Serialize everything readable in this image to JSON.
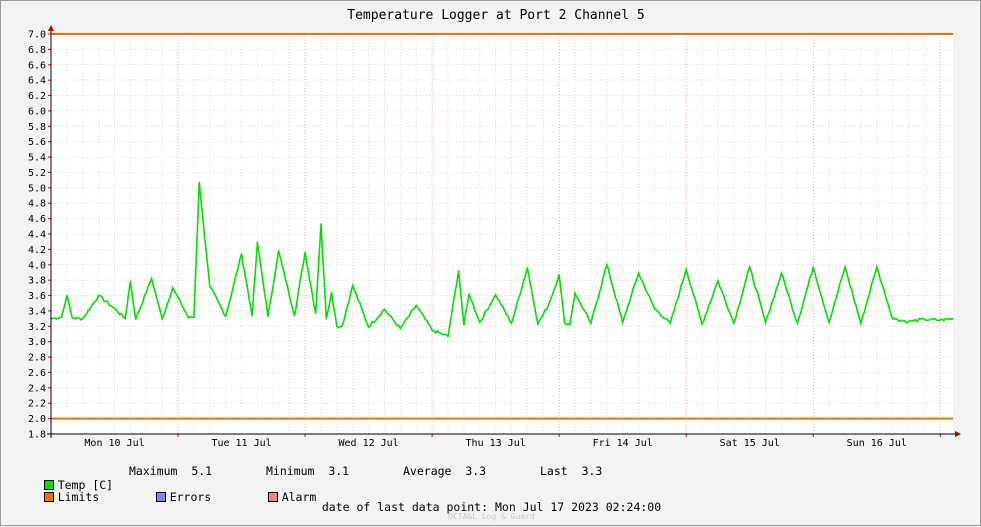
{
  "chart_data": {
    "type": "line",
    "title": "Temperature Logger at Port 2 Channel 5",
    "ylim": [
      1.8,
      7.0
    ],
    "yticks": [
      "1.8",
      "2.0",
      "2.2",
      "2.4",
      "2.6",
      "2.8",
      "3.0",
      "3.2",
      "3.4",
      "3.6",
      "3.8",
      "4.0",
      "4.2",
      "4.4",
      "4.6",
      "4.8",
      "5.0",
      "5.2",
      "5.4",
      "5.6",
      "5.8",
      "6.0",
      "6.2",
      "6.4",
      "6.6",
      "6.8",
      "7.0"
    ],
    "xlim": [
      "Mon Jul 10 2023 00:00",
      "Mon Jul 17 2023 02:24"
    ],
    "xticks": [
      "Mon 10 Jul",
      "Tue 11 Jul",
      "Wed 12 Jul",
      "Thu 13 Jul",
      "Fri 14 Jul",
      "Sat 15 Jul",
      "Sun 16 Jul"
    ],
    "limits": [
      7.0,
      2.0
    ],
    "series": [
      {
        "name": "Temp [C]",
        "color": "#00e000",
        "x": [
          "Mon Jul 10 00:00",
          "Mon Jul 10 02:00",
          "Mon Jul 10 03:00",
          "Mon Jul 10 04:00",
          "Mon Jul 10 06:00",
          "Mon Jul 10 09:00",
          "Mon Jul 10 12:00",
          "Mon Jul 10 14:00",
          "Mon Jul 10 15:00",
          "Mon Jul 10 16:00",
          "Mon Jul 10 19:00",
          "Mon Jul 10 21:00",
          "Mon Jul 10 23:00",
          "Tue Jul 11 02:00",
          "Tue Jul 11 03:00",
          "Tue Jul 11 04:00",
          "Tue Jul 11 06:00",
          "Tue Jul 11 09:00",
          "Tue Jul 11 12:00",
          "Tue Jul 11 14:00",
          "Tue Jul 11 15:00",
          "Tue Jul 11 17:00",
          "Tue Jul 11 19:00",
          "Tue Jul 11 22:00",
          "Wed Jul 12 00:00",
          "Wed Jul 12 02:00",
          "Wed Jul 12 03:00",
          "Wed Jul 12 04:00",
          "Wed Jul 12 05:00",
          "Wed Jul 12 06:00",
          "Wed Jul 12 07:00",
          "Wed Jul 12 09:00",
          "Wed Jul 12 12:00",
          "Wed Jul 12 15:00",
          "Wed Jul 12 18:00",
          "Wed Jul 12 21:00",
          "Thu Jul 13 00:00",
          "Thu Jul 13 03:00",
          "Thu Jul 13 05:00",
          "Thu Jul 13 06:00",
          "Thu Jul 13 07:00",
          "Thu Jul 13 09:00",
          "Thu Jul 13 12:00",
          "Thu Jul 13 15:00",
          "Thu Jul 13 18:00",
          "Thu Jul 13 20:00",
          "Thu Jul 13 22:00",
          "Fri Jul 14 00:00",
          "Fri Jul 14 01:00",
          "Fri Jul 14 02:00",
          "Fri Jul 14 03:00",
          "Fri Jul 14 06:00",
          "Fri Jul 14 09:00",
          "Fri Jul 14 12:00",
          "Fri Jul 14 15:00",
          "Fri Jul 14 18:00",
          "Fri Jul 14 21:00",
          "Sat Jul 15 00:00",
          "Sat Jul 15 03:00",
          "Sat Jul 15 06:00",
          "Sat Jul 15 09:00",
          "Sat Jul 15 12:00",
          "Sat Jul 15 15:00",
          "Sat Jul 15 18:00",
          "Sat Jul 15 21:00",
          "Sun Jul 16 00:00",
          "Sun Jul 16 03:00",
          "Sun Jul 16 06:00",
          "Sun Jul 16 09:00",
          "Sun Jul 16 12:00",
          "Sun Jul 16 15:00",
          "Sun Jul 16 18:00",
          "Sun Jul 16 21:00",
          "Mon Jul 17 00:00",
          "Mon Jul 17 02:24"
        ],
        "values": [
          3.3,
          3.32,
          3.6,
          3.31,
          3.3,
          3.6,
          3.43,
          3.3,
          3.78,
          3.29,
          3.82,
          3.3,
          3.7,
          3.31,
          3.32,
          5.07,
          3.72,
          3.33,
          4.14,
          3.34,
          4.29,
          3.33,
          4.18,
          3.34,
          4.16,
          3.37,
          4.53,
          3.3,
          3.64,
          3.2,
          3.2,
          3.73,
          3.19,
          3.42,
          3.17,
          3.47,
          3.15,
          3.07,
          3.92,
          3.22,
          3.62,
          3.25,
          3.61,
          3.24,
          3.96,
          3.23,
          3.48,
          3.87,
          3.25,
          3.22,
          3.63,
          3.24,
          4.0,
          3.25,
          3.89,
          3.43,
          3.24,
          3.94,
          3.23,
          3.79,
          3.24,
          3.97,
          3.25,
          3.89,
          3.24,
          3.97,
          3.25,
          3.97,
          3.24,
          3.97,
          3.3,
          3.26,
          3.29,
          3.28,
          3.3
        ]
      }
    ],
    "legend": {
      "series_label": "Temp [C]",
      "maximum_label": "Maximum",
      "maximum_value": "5.1",
      "minimum_label": "Minimum",
      "minimum_value": "3.1",
      "average_label": "Average",
      "average_value": "3.3",
      "last_label": "Last",
      "last_value": "3.3",
      "limits_label": "Limits",
      "errors_label": "Errors",
      "alarm_label": "Alarm"
    },
    "footer": {
      "date_label": "date of last data point:",
      "date_value": "Mon Jul 17 2023 02:24:00",
      "credit": "OCTA&L Log & Guard"
    },
    "colors": {
      "temp": "#00e000",
      "limits": "#f07000",
      "errors": "#7f7fff",
      "alarm": "#ff7f7f",
      "grid_minor": "#dcdcdc",
      "grid_major": "#f0a0a0"
    }
  }
}
